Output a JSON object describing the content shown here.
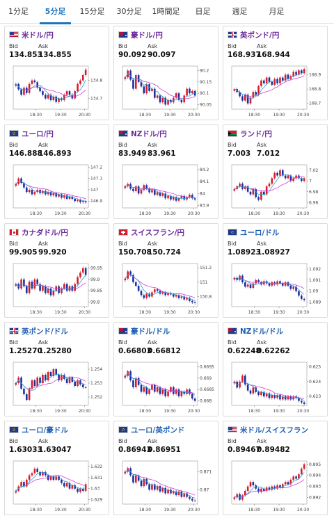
{
  "tabs": [
    {
      "label": "1分足",
      "active": false
    },
    {
      "label": "5分足",
      "active": true
    },
    {
      "label": "15分足",
      "active": false
    },
    {
      "label": "30分足",
      "active": false
    },
    {
      "label": "1時間足",
      "active": false
    },
    {
      "label": "日足",
      "active": false
    },
    {
      "label": "週足",
      "active": false
    },
    {
      "label": "月足",
      "active": false
    }
  ],
  "labels": {
    "bid": "Bid",
    "ask": "Ask"
  },
  "colors": {
    "up": "#d61e2a",
    "down": "#1c2f9c",
    "ma1": "#d43ad4",
    "ma2": "#2e9ad6",
    "pair_jpy": "#6b2a9b",
    "pair_other": "#1e5fb4"
  },
  "cards": [
    {
      "pair": "米ドル/円",
      "flag": "us",
      "bid": "134.853",
      "ask": "134.855",
      "chart_data": {
        "type": "candlestick",
        "x_ticks": [
          "18:30",
          "19:30",
          "20:30"
        ],
        "y_ticks": [
          "134.8",
          "134.7"
        ],
        "ylim": [
          134.64,
          134.88
        ],
        "series": [
          134.78,
          134.75,
          134.72,
          134.76,
          134.73,
          134.78,
          134.8,
          134.79,
          134.76,
          134.74,
          134.72,
          134.7,
          134.72,
          134.69,
          134.71,
          134.68,
          134.7,
          134.69,
          134.72,
          134.74,
          134.72,
          134.7,
          134.74,
          134.78,
          134.8,
          134.83,
          134.86
        ]
      }
    },
    {
      "pair": "豪ドル/円",
      "flag": "au",
      "bid": "90.092",
      "ask": "90.097",
      "chart_data": {
        "type": "candlestick",
        "x_ticks": [
          "18:30",
          "19:30",
          "20:30"
        ],
        "y_ticks": [
          "90.2",
          "90.15",
          "90.1",
          "90.05"
        ],
        "ylim": [
          90.03,
          90.22
        ],
        "series": [
          90.17,
          90.2,
          90.16,
          90.12,
          90.18,
          90.15,
          90.13,
          90.1,
          90.14,
          90.11,
          90.12,
          90.08,
          90.09,
          90.06,
          90.08,
          90.05,
          90.07,
          90.06,
          90.08,
          90.1,
          90.07,
          90.06,
          90.09,
          90.12,
          90.1,
          90.11,
          90.09
        ]
      }
    },
    {
      "pair": "英ポンド/円",
      "flag": "gb",
      "bid": "168.937",
      "ask": "168.944",
      "chart_data": {
        "type": "candlestick",
        "x_ticks": [
          "18:30",
          "19:30",
          "20:30"
        ],
        "y_ticks": [
          "168.9",
          "168.8",
          "168.7"
        ],
        "ylim": [
          168.66,
          168.96
        ],
        "series": [
          168.8,
          168.78,
          168.75,
          168.72,
          168.76,
          168.7,
          168.74,
          168.78,
          168.76,
          168.82,
          168.86,
          168.84,
          168.88,
          168.85,
          168.83,
          168.87,
          168.84,
          168.88,
          168.86,
          168.9,
          168.87,
          168.89,
          168.92,
          168.9,
          168.93,
          168.91,
          168.94
        ]
      }
    },
    {
      "pair": "ユーロ/円",
      "flag": "eu",
      "bid": "146.888",
      "ask": "146.893",
      "chart_data": {
        "type": "candlestick",
        "x_ticks": [
          "18:30",
          "19:30",
          "20:30"
        ],
        "y_ticks": [
          "147.2",
          "147.1",
          "147",
          "146.9"
        ],
        "ylim": [
          146.84,
          147.22
        ],
        "series": [
          147.05,
          147.1,
          147.06,
          147.02,
          146.98,
          147.0,
          146.96,
          146.98,
          147.0,
          146.97,
          146.99,
          146.96,
          146.98,
          146.95,
          146.97,
          146.94,
          146.96,
          146.93,
          146.95,
          146.92,
          146.94,
          146.92,
          146.9,
          146.91,
          146.89,
          146.9,
          146.89
        ]
      }
    },
    {
      "pair": "NZドル/円",
      "flag": "nz",
      "bid": "83.949",
      "ask": "83.961",
      "chart_data": {
        "type": "candlestick",
        "x_ticks": [
          "18:30",
          "19:30",
          "20:30"
        ],
        "y_ticks": [
          "84.2",
          "84.1",
          "84",
          "83.9"
        ],
        "ylim": [
          83.88,
          84.24
        ],
        "series": [
          84.06,
          84.08,
          84.04,
          84.02,
          84.06,
          84.0,
          84.03,
          84.07,
          84.04,
          84.01,
          84.03,
          83.99,
          84.01,
          83.98,
          84.0,
          83.96,
          83.98,
          83.95,
          83.97,
          83.94,
          83.96,
          83.98,
          83.95,
          83.97,
          83.99,
          83.96,
          83.95
        ]
      }
    },
    {
      "pair": "ランド/円",
      "flag": "za",
      "bid": "7.003",
      "ask": "7.012",
      "chart_data": {
        "type": "candlestick",
        "x_ticks": [
          "18:30",
          "19:30",
          "20:30"
        ],
        "y_ticks": [
          "7.02",
          "7",
          "6.98",
          "6.96"
        ],
        "ylim": [
          6.95,
          7.03
        ],
        "series": [
          6.985,
          6.99,
          6.995,
          6.985,
          6.99,
          6.98,
          6.975,
          6.985,
          6.97,
          6.965,
          6.98,
          6.975,
          6.99,
          6.995,
          7.005,
          7.015,
          7.01,
          7.02,
          7.01,
          7.005,
          7.01,
          7.0,
          7.005,
          7.01,
          7.005,
          7.0,
          7.005
        ]
      }
    },
    {
      "pair": "カナダドル/円",
      "flag": "ca",
      "bid": "99.905",
      "ask": "99.920",
      "chart_data": {
        "type": "candlestick",
        "x_ticks": [
          "18:30",
          "19:30",
          "20:30"
        ],
        "y_ticks": [
          "99.95",
          "99.9",
          "99.85",
          "99.8"
        ],
        "ylim": [
          99.78,
          99.97
        ],
        "series": [
          99.88,
          99.86,
          99.9,
          99.87,
          99.84,
          99.89,
          99.86,
          99.9,
          99.88,
          99.85,
          99.87,
          99.84,
          99.86,
          99.83,
          99.85,
          99.87,
          99.84,
          99.86,
          99.88,
          99.85,
          99.87,
          99.85,
          99.88,
          99.91,
          99.93,
          99.95,
          99.92
        ]
      }
    },
    {
      "pair": "スイスフラン/円",
      "flag": "ch",
      "bid": "150.708",
      "ask": "150.724",
      "chart_data": {
        "type": "candlestick",
        "x_ticks": [
          "18:30",
          "19:30",
          "20:30"
        ],
        "y_ticks": [
          "151.2",
          "151",
          "150.8"
        ],
        "ylim": [
          150.66,
          151.26
        ],
        "series": [
          151.05,
          151.15,
          151.1,
          151.0,
          150.95,
          150.88,
          150.82,
          150.78,
          150.84,
          150.8,
          150.86,
          150.9,
          150.88,
          150.84,
          150.86,
          150.82,
          150.85,
          150.83,
          150.8,
          150.82,
          150.78,
          150.8,
          150.76,
          150.78,
          150.74,
          150.72,
          150.71
        ]
      }
    },
    {
      "pair": "ユーロ/ドル",
      "flag": "euus",
      "bid": "1.08923",
      "ask": "1.08927",
      "chart_data": {
        "type": "candlestick",
        "x_ticks": [
          "18:30",
          "19:30",
          "20:30"
        ],
        "y_ticks": [
          "1.092",
          "1.091",
          "1.09",
          "1.089"
        ],
        "ylim": [
          1.0886,
          1.0925
        ],
        "series": [
          1.0912,
          1.091,
          1.0914,
          1.0908,
          1.0904,
          1.0906,
          1.0903,
          1.0907,
          1.091,
          1.0908,
          1.0906,
          1.0909,
          1.0907,
          1.0905,
          1.0908,
          1.0906,
          1.0909,
          1.0907,
          1.0905,
          1.0908,
          1.0905,
          1.0902,
          1.0904,
          1.09,
          1.0896,
          1.0893,
          1.0892
        ]
      }
    },
    {
      "pair": "英ポンド/ドル",
      "flag": "gbus",
      "bid": "1.25270",
      "ask": "1.25280",
      "chart_data": {
        "type": "candlestick",
        "x_ticks": [
          "18:30",
          "19:30",
          "20:30"
        ],
        "y_ticks": [
          "1.254",
          "1.253",
          "1.252"
        ],
        "ylim": [
          1.2514,
          1.2545
        ],
        "series": [
          1.253,
          1.2534,
          1.2526,
          1.2522,
          1.2518,
          1.2526,
          1.2532,
          1.2528,
          1.2534,
          1.253,
          1.2536,
          1.2532,
          1.2538,
          1.2535,
          1.254,
          1.2536,
          1.2532,
          1.2536,
          1.2533,
          1.253,
          1.2534,
          1.2531,
          1.2528,
          1.2532,
          1.2529,
          1.2527,
          1.2527
        ]
      }
    },
    {
      "pair": "豪ドル/ドル",
      "flag": "auus",
      "bid": "0.66803",
      "ask": "0.66812",
      "chart_data": {
        "type": "candlestick",
        "x_ticks": [
          "18:30",
          "19:30",
          "20:30"
        ],
        "y_ticks": [
          "0.6695",
          "0.669",
          "0.6685",
          "0.668"
        ],
        "ylim": [
          0.6678,
          0.6697
        ],
        "series": [
          0.6691,
          0.6693,
          0.6689,
          0.6686,
          0.669,
          0.6687,
          0.6684,
          0.6686,
          0.6683,
          0.6685,
          0.6687,
          0.6684,
          0.6686,
          0.6683,
          0.6685,
          0.6682,
          0.6684,
          0.6686,
          0.6683,
          0.6685,
          0.6682,
          0.6684,
          0.6683,
          0.6685,
          0.6683,
          0.6681,
          0.668
        ]
      }
    },
    {
      "pair": "NZドル/ドル",
      "flag": "nzus",
      "bid": "0.62248",
      "ask": "0.62262",
      "chart_data": {
        "type": "candlestick",
        "x_ticks": [
          "18:30",
          "19:30",
          "20:30"
        ],
        "y_ticks": [
          "0.625",
          "0.624",
          "0.623"
        ],
        "ylim": [
          0.6224,
          0.6253
        ],
        "series": [
          0.624,
          0.6236,
          0.624,
          0.6244,
          0.6238,
          0.6234,
          0.6232,
          0.6236,
          0.6233,
          0.6231,
          0.6233,
          0.623,
          0.6232,
          0.6229,
          0.6231,
          0.6229,
          0.6231,
          0.6228,
          0.623,
          0.6228,
          0.623,
          0.6228,
          0.623,
          0.6229,
          0.6227,
          0.6226,
          0.6225
        ]
      }
    },
    {
      "pair": "ユーロ/豪ドル",
      "flag": "euau",
      "bid": "1.63033",
      "ask": "1.63047",
      "chart_data": {
        "type": "candlestick",
        "x_ticks": [
          "18:30",
          "19:30",
          "20:30"
        ],
        "y_ticks": [
          "1.632",
          "1.631",
          "1.63",
          "1.629"
        ],
        "ylim": [
          1.6286,
          1.6325
        ],
        "series": [
          1.6298,
          1.6302,
          1.6306,
          1.6302,
          1.6308,
          1.6312,
          1.6314,
          1.6318,
          1.6315,
          1.6312,
          1.6315,
          1.6312,
          1.6308,
          1.6311,
          1.6308,
          1.6311,
          1.6308,
          1.6305,
          1.6302,
          1.6305,
          1.63,
          1.6303,
          1.63,
          1.6297,
          1.63,
          1.6298,
          1.6304
        ]
      }
    },
    {
      "pair": "ユーロ/英ポンド",
      "flag": "eugb",
      "bid": "0.86943",
      "ask": "0.86951",
      "chart_data": {
        "type": "candlestick",
        "x_ticks": [
          "18:30",
          "19:30",
          "20:30"
        ],
        "y_ticks": [
          "0.871",
          "0.87"
        ],
        "ylim": [
          0.8692,
          0.8716
        ],
        "series": [
          0.871,
          0.8712,
          0.8708,
          0.8704,
          0.8708,
          0.8705,
          0.8702,
          0.8706,
          0.8703,
          0.87,
          0.8703,
          0.87,
          0.8702,
          0.8699,
          0.8701,
          0.8698,
          0.87,
          0.8698,
          0.8699,
          0.8697,
          0.8699,
          0.8696,
          0.8698,
          0.8696,
          0.8695,
          0.8694,
          0.8694
        ]
      }
    },
    {
      "pair": "米ドル/スイスフラン",
      "flag": "usch",
      "bid": "0.89467",
      "ask": "0.89482",
      "chart_data": {
        "type": "candlestick",
        "x_ticks": [
          "18:30",
          "19:30",
          "20:30"
        ],
        "y_ticks": [
          "0.895",
          "0.894",
          "0.893",
          "0.892"
        ],
        "ylim": [
          0.8914,
          0.8953
        ],
        "series": [
          0.892,
          0.8923,
          0.8918,
          0.8922,
          0.8926,
          0.893,
          0.8934,
          0.8931,
          0.8928,
          0.8925,
          0.8928,
          0.8926,
          0.8929,
          0.8927,
          0.893,
          0.8928,
          0.8931,
          0.8929,
          0.8932,
          0.8934,
          0.8932,
          0.8936,
          0.8939,
          0.8937,
          0.8941,
          0.8946,
          0.895
        ]
      }
    }
  ]
}
